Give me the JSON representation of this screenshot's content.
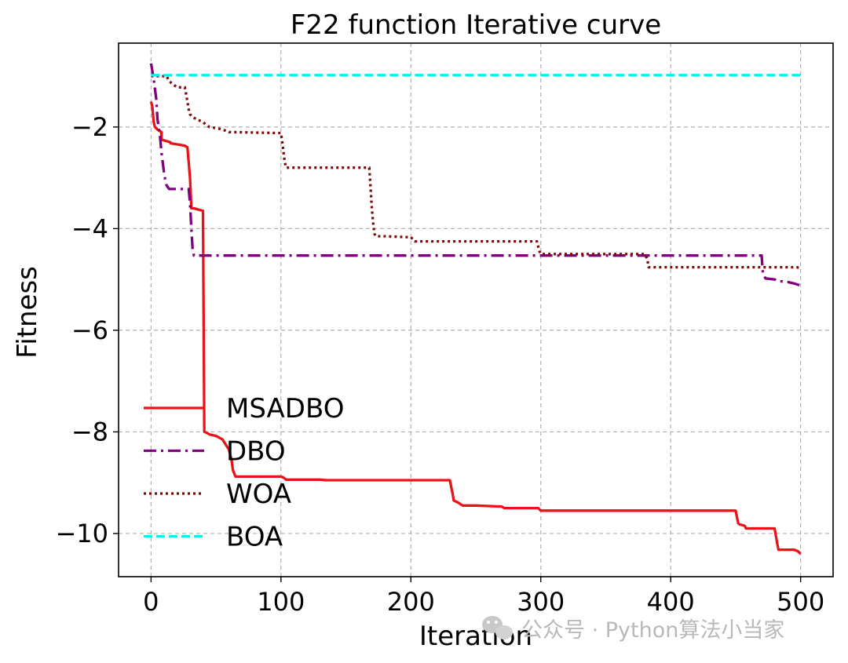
{
  "chart_data": {
    "type": "line",
    "title": "F22 function Iterative curve",
    "xlabel": "Iteration",
    "ylabel": "Fitness",
    "xlim": [
      -25,
      525
    ],
    "ylim": [
      -10.85,
      -0.35
    ],
    "xticks": [
      0,
      100,
      200,
      300,
      400,
      500
    ],
    "xtick_labels": [
      "0",
      "100",
      "200",
      "300",
      "400",
      "500"
    ],
    "yticks": [
      -2,
      -4,
      -6,
      -8,
      -10
    ],
    "ytick_labels": [
      "−2",
      "−4",
      "−6",
      "−8",
      "−10"
    ],
    "grid": true,
    "legend_position": "lower-left",
    "series": [
      {
        "name": "MSADBO",
        "color": "#e8141a",
        "style": "solid",
        "x": [
          0,
          1,
          2,
          3,
          5,
          8,
          8,
          15,
          15,
          22,
          26,
          28,
          30,
          31,
          33,
          40,
          41,
          43,
          45,
          50,
          55,
          60,
          62,
          63,
          65,
          100,
          102,
          103,
          104,
          130,
          135,
          230,
          232,
          233,
          237,
          238,
          240,
          250,
          270,
          272,
          298,
          300,
          450,
          452,
          453,
          457,
          458,
          480,
          482,
          483,
          495,
          498,
          500
        ],
        "y": [
          -1.5,
          -1.6,
          -1.9,
          -2.0,
          -2.05,
          -2.1,
          -2.25,
          -2.3,
          -2.32,
          -2.35,
          -2.37,
          -2.4,
          -3.0,
          -3.6,
          -3.6,
          -3.65,
          -8.0,
          -8.02,
          -8.05,
          -8.08,
          -8.15,
          -8.35,
          -8.55,
          -8.75,
          -8.88,
          -8.88,
          -8.9,
          -8.92,
          -8.94,
          -8.94,
          -8.95,
          -8.95,
          -9.2,
          -9.35,
          -9.4,
          -9.42,
          -9.45,
          -9.45,
          -9.47,
          -9.5,
          -9.5,
          -9.55,
          -9.55,
          -9.8,
          -9.82,
          -9.85,
          -9.9,
          -9.9,
          -10.2,
          -10.32,
          -10.32,
          -10.35,
          -10.4
        ]
      },
      {
        "name": "DBO",
        "color": "#800080",
        "style": "dashdot",
        "x": [
          0,
          2,
          4,
          5,
          7,
          8,
          10,
          11,
          12,
          14,
          29,
          30,
          31,
          32,
          33,
          470,
          471,
          473,
          480,
          482,
          490,
          495,
          500
        ],
        "y": [
          -0.75,
          -1.05,
          -1.45,
          -1.85,
          -2.2,
          -2.5,
          -2.9,
          -3.05,
          -3.15,
          -3.22,
          -3.22,
          -3.5,
          -4.0,
          -4.4,
          -4.53,
          -4.53,
          -4.9,
          -4.98,
          -5.0,
          -5.03,
          -5.05,
          -5.08,
          -5.12
        ]
      },
      {
        "name": "WOA",
        "color": "#7b0c0c",
        "style": "dotted",
        "x": [
          0,
          12,
          14,
          20,
          26,
          27,
          28,
          29,
          30,
          32,
          35,
          40,
          42,
          45,
          50,
          55,
          60,
          100,
          101,
          102,
          103,
          104,
          168,
          169,
          170,
          171,
          172,
          173,
          180,
          200,
          202,
          203,
          297,
          298,
          299,
          300,
          380,
          382,
          383,
          497,
          500
        ],
        "y": [
          -1.0,
          -1.0,
          -1.1,
          -1.22,
          -1.22,
          -1.35,
          -1.5,
          -1.65,
          -1.75,
          -1.8,
          -1.85,
          -1.9,
          -1.95,
          -2.0,
          -2.02,
          -2.05,
          -2.1,
          -2.12,
          -2.3,
          -2.5,
          -2.7,
          -2.8,
          -2.8,
          -3.2,
          -3.6,
          -3.9,
          -4.1,
          -4.15,
          -4.15,
          -4.17,
          -4.22,
          -4.25,
          -4.25,
          -4.35,
          -4.45,
          -4.5,
          -4.5,
          -4.6,
          -4.76,
          -4.76,
          -4.78
        ]
      },
      {
        "name": "BOA",
        "color": "#00f3f3",
        "style": "dashed",
        "x": [
          0,
          500
        ],
        "y": [
          -0.98,
          -0.98
        ]
      }
    ]
  },
  "watermark": {
    "text": "公众号 · Python算法小当家"
  }
}
